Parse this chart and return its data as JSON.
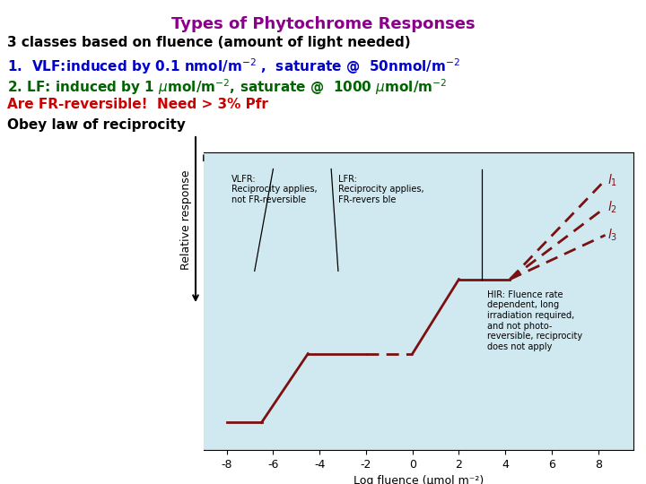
{
  "title": "Types of Phytochrome Responses",
  "title_color": "#8B008B",
  "text_color_black": "#000000",
  "text_color_blue": "#0000CC",
  "text_color_green": "#006400",
  "text_color_red": "#CC0000",
  "plot_bg_color": "#D0E8F0",
  "curve_color": "#7B1010",
  "xlabel": "Log fluence (μmol m⁻²)",
  "xticks": [
    -8,
    -6,
    -4,
    -2,
    0,
    2,
    4,
    6,
    8
  ],
  "vlfr_text": "VLFR:\nReciprocity applies,\nnot FR-reversible",
  "lfr_text": "LFR:\nReciprocity applies,\nFR-revers ble",
  "hir_text": "HIR: Fluence rate\ndependent, long\nirradiation required,\nand not photo-\nreversible, reciprocity\ndoes not apply"
}
